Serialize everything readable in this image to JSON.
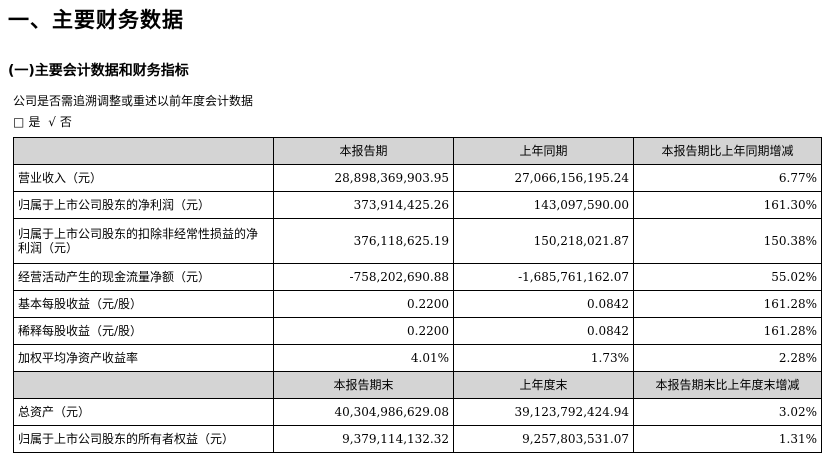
{
  "heading": "一、主要财务数据",
  "subheading": "(一)主要会计数据和财务指标",
  "question": "公司是否需追溯调整或重述以前年度会计数据",
  "options": {
    "box": "□",
    "yes": "是",
    "check": "√",
    "no": "否"
  },
  "table": {
    "header1": [
      "本报告期",
      "上年同期",
      "本报告期比上年同期增减"
    ],
    "rows1": [
      {
        "label": "营业收入（元）",
        "current": "28,898,369,903.95",
        "prior": "27,066,156,195.24",
        "change": "6.77%"
      },
      {
        "label": "归属于上市公司股东的净利润（元）",
        "current": "373,914,425.26",
        "prior": "143,097,590.00",
        "change": "161.30%"
      },
      {
        "label": "归属于上市公司股东的扣除非经常性损益的净利润（元）",
        "current": "376,118,625.19",
        "prior": "150,218,021.87",
        "change": "150.38%"
      },
      {
        "label": "经营活动产生的现金流量净额（元）",
        "current": "-758,202,690.88",
        "prior": "-1,685,761,162.07",
        "change": "55.02%"
      },
      {
        "label": "基本每股收益（元/股）",
        "current": "0.2200",
        "prior": "0.0842",
        "change": "161.28%"
      },
      {
        "label": "稀释每股收益（元/股）",
        "current": "0.2200",
        "prior": "0.0842",
        "change": "161.28%"
      },
      {
        "label": "加权平均净资产收益率",
        "current": "4.01%",
        "prior": "1.73%",
        "change": "2.28%"
      }
    ],
    "header2": [
      "本报告期末",
      "上年度末",
      "本报告期末比上年度末增减"
    ],
    "rows2": [
      {
        "label": "总资产（元）",
        "current": "40,304,986,629.08",
        "prior": "39,123,792,424.94",
        "change": "3.02%"
      },
      {
        "label": "归属于上市公司股东的所有者权益（元）",
        "current": "9,379,114,132.32",
        "prior": "9,257,803,531.07",
        "change": "1.31%"
      }
    ]
  }
}
